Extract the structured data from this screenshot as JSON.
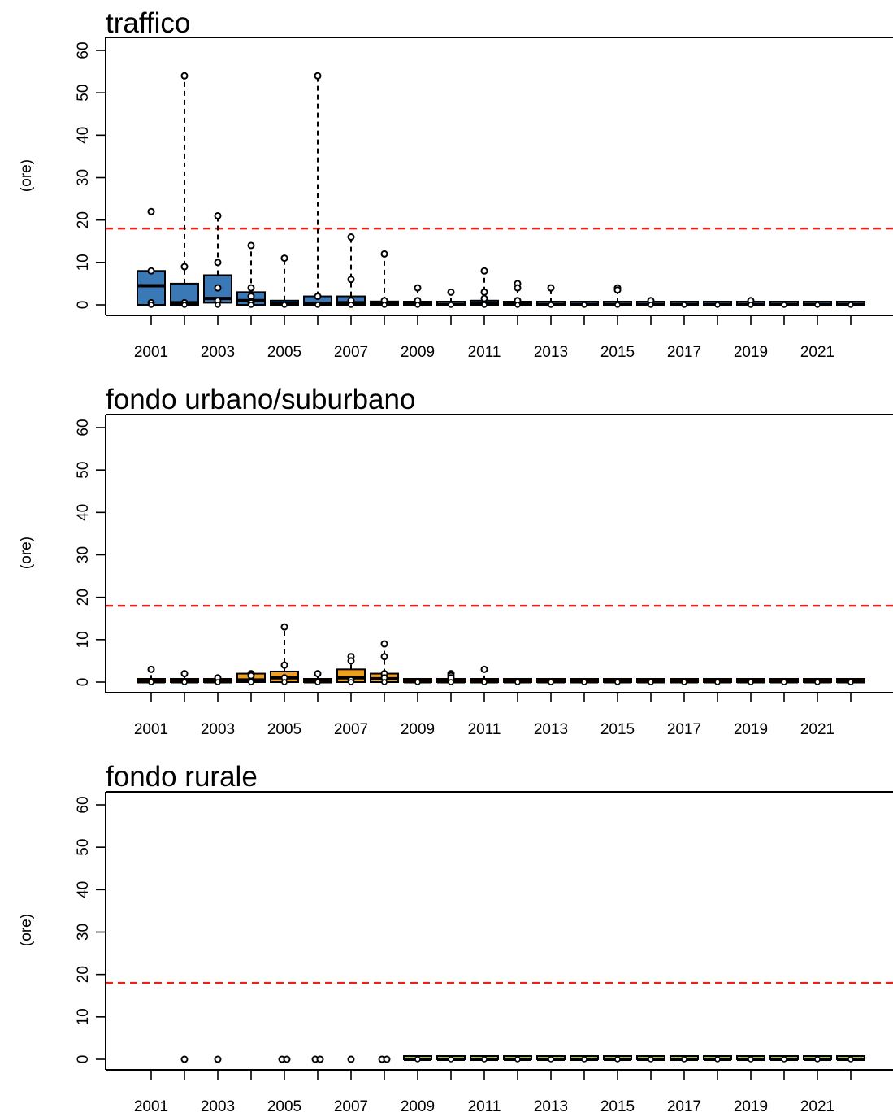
{
  "chart_data": [
    {
      "type": "box",
      "title": "traffico",
      "ylabel": "(ore)",
      "ylim": [
        0,
        60
      ],
      "yticks": [
        0,
        10,
        20,
        30,
        40,
        50,
        60
      ],
      "years": [
        2001,
        2002,
        2003,
        2004,
        2005,
        2006,
        2007,
        2008,
        2009,
        2010,
        2011,
        2012,
        2013,
        2014,
        2015,
        2016,
        2017,
        2018,
        2019,
        2020,
        2021,
        2022
      ],
      "xtick_labels": [
        "2001",
        "2003",
        "2005",
        "2007",
        "2009",
        "2011",
        "2013",
        "2015",
        "2017",
        "2019",
        "2021"
      ],
      "fill_color": "#3a78b6",
      "threshold": 18,
      "threshold_color": "#e8221b",
      "boxes": [
        {
          "year": 2001,
          "q1": 0,
          "median": 4.5,
          "q3": 8,
          "whisker_low": 0,
          "whisker_high": 8,
          "outliers": [
            22,
            8,
            0.5
          ]
        },
        {
          "year": 2002,
          "q1": 0,
          "median": 0.5,
          "q3": 5,
          "whisker_low": 0,
          "whisker_high": 54,
          "outliers": [
            54,
            9,
            0.5
          ]
        },
        {
          "year": 2003,
          "q1": 0.5,
          "median": 1.5,
          "q3": 7,
          "whisker_low": 0,
          "whisker_high": 21,
          "outliers": [
            21,
            10,
            4,
            1
          ]
        },
        {
          "year": 2004,
          "q1": 0,
          "median": 1,
          "q3": 3,
          "whisker_low": 0,
          "whisker_high": 14,
          "outliers": [
            14,
            4,
            2,
            0.5
          ]
        },
        {
          "year": 2005,
          "q1": 0,
          "median": 0.2,
          "q3": 1,
          "whisker_low": 0,
          "whisker_high": 11,
          "outliers": [
            11
          ]
        },
        {
          "year": 2006,
          "q1": 0,
          "median": 0.3,
          "q3": 2,
          "whisker_low": 0,
          "whisker_high": 54,
          "outliers": [
            54,
            2
          ]
        },
        {
          "year": 2007,
          "q1": 0,
          "median": 0.5,
          "q3": 2,
          "whisker_low": 0,
          "whisker_high": 16,
          "outliers": [
            16,
            6,
            1
          ]
        },
        {
          "year": 2008,
          "q1": 0,
          "median": 0.2,
          "q3": 0.8,
          "whisker_low": 0,
          "whisker_high": 12,
          "outliers": [
            12,
            1
          ]
        },
        {
          "year": 2009,
          "q1": 0,
          "median": 0.2,
          "q3": 0.6,
          "whisker_low": 0,
          "whisker_high": 4,
          "outliers": [
            4,
            1
          ]
        },
        {
          "year": 2010,
          "q1": 0,
          "median": 0.1,
          "q3": 0.4,
          "whisker_low": 0,
          "whisker_high": 3,
          "outliers": [
            3
          ]
        },
        {
          "year": 2011,
          "q1": 0,
          "median": 0.3,
          "q3": 1,
          "whisker_low": 0,
          "whisker_high": 8,
          "outliers": [
            8,
            3,
            1.5
          ]
        },
        {
          "year": 2012,
          "q1": 0,
          "median": 0.2,
          "q3": 0.6,
          "whisker_low": 0,
          "whisker_high": 5,
          "outliers": [
            5,
            4,
            1
          ]
        },
        {
          "year": 2013,
          "q1": 0,
          "median": 0.1,
          "q3": 0.4,
          "whisker_low": 0,
          "whisker_high": 4,
          "outliers": [
            4
          ]
        },
        {
          "year": 2014,
          "q1": 0,
          "median": 0.1,
          "q3": 0.3,
          "whisker_low": 0,
          "whisker_high": 0.3,
          "outliers": []
        },
        {
          "year": 2015,
          "q1": 0,
          "median": 0.1,
          "q3": 0.4,
          "whisker_low": 0,
          "whisker_high": 4,
          "outliers": [
            4,
            3.5
          ]
        },
        {
          "year": 2016,
          "q1": 0,
          "median": 0.1,
          "q3": 0.4,
          "whisker_low": 0,
          "whisker_high": 1,
          "outliers": [
            1
          ]
        },
        {
          "year": 2017,
          "q1": 0,
          "median": 0.1,
          "q3": 0.3,
          "whisker_low": 0,
          "whisker_high": 0.3,
          "outliers": []
        },
        {
          "year": 2018,
          "q1": 0,
          "median": 0.1,
          "q3": 0.3,
          "whisker_low": 0,
          "whisker_high": 0.3,
          "outliers": []
        },
        {
          "year": 2019,
          "q1": 0,
          "median": 0.1,
          "q3": 0.3,
          "whisker_low": 0,
          "whisker_high": 1,
          "outliers": [
            1
          ]
        },
        {
          "year": 2020,
          "q1": 0,
          "median": 0.1,
          "q3": 0.3,
          "whisker_low": 0,
          "whisker_high": 0.3,
          "outliers": []
        },
        {
          "year": 2021,
          "q1": 0,
          "median": 0.1,
          "q3": 0.3,
          "whisker_low": 0,
          "whisker_high": 0.3,
          "outliers": []
        },
        {
          "year": 2022,
          "q1": 0,
          "median": 0.1,
          "q3": 0.3,
          "whisker_low": 0,
          "whisker_high": 0.3,
          "outliers": []
        }
      ]
    },
    {
      "type": "box",
      "title": "fondo urbano/suburbano",
      "ylabel": "(ore)",
      "ylim": [
        0,
        60
      ],
      "yticks": [
        0,
        10,
        20,
        30,
        40,
        50,
        60
      ],
      "years": [
        2001,
        2002,
        2003,
        2004,
        2005,
        2006,
        2007,
        2008,
        2009,
        2010,
        2011,
        2012,
        2013,
        2014,
        2015,
        2016,
        2017,
        2018,
        2019,
        2020,
        2021,
        2022
      ],
      "xtick_labels": [
        "2001",
        "2003",
        "2005",
        "2007",
        "2009",
        "2011",
        "2013",
        "2015",
        "2017",
        "2019",
        "2021"
      ],
      "fill_color": "#f0a020",
      "threshold": 18,
      "threshold_color": "#e8221b",
      "boxes": [
        {
          "year": 2001,
          "q1": 0,
          "median": 0.1,
          "q3": 0.5,
          "whisker_low": 0,
          "whisker_high": 3,
          "outliers": [
            3
          ]
        },
        {
          "year": 2002,
          "q1": 0,
          "median": 0.1,
          "q3": 0.4,
          "whisker_low": 0,
          "whisker_high": 2,
          "outliers": [
            2
          ]
        },
        {
          "year": 2003,
          "q1": 0,
          "median": 0.1,
          "q3": 0.4,
          "whisker_low": 0,
          "whisker_high": 1,
          "outliers": [
            1
          ]
        },
        {
          "year": 2004,
          "q1": 0,
          "median": 0.5,
          "q3": 2,
          "whisker_low": 0,
          "whisker_high": 2,
          "outliers": [
            2,
            1.5
          ]
        },
        {
          "year": 2005,
          "q1": 0,
          "median": 1,
          "q3": 2.5,
          "whisker_low": 0,
          "whisker_high": 13,
          "outliers": [
            13,
            4,
            1
          ]
        },
        {
          "year": 2006,
          "q1": 0,
          "median": 0.1,
          "q3": 0.5,
          "whisker_low": 0,
          "whisker_high": 2,
          "outliers": [
            2
          ]
        },
        {
          "year": 2007,
          "q1": 0,
          "median": 1,
          "q3": 3,
          "whisker_low": 0,
          "whisker_high": 6,
          "outliers": [
            6,
            5,
            0.5
          ]
        },
        {
          "year": 2008,
          "q1": 0,
          "median": 0.8,
          "q3": 2,
          "whisker_low": 0,
          "whisker_high": 9,
          "outliers": [
            9,
            6,
            2,
            1
          ]
        },
        {
          "year": 2009,
          "q1": 0,
          "median": 0.1,
          "q3": 0.3,
          "whisker_low": 0,
          "whisker_high": 0.3,
          "outliers": []
        },
        {
          "year": 2010,
          "q1": 0,
          "median": 0.1,
          "q3": 0.4,
          "whisker_low": 0,
          "whisker_high": 2,
          "outliers": [
            2,
            1.5,
            1
          ]
        },
        {
          "year": 2011,
          "q1": 0,
          "median": 0.1,
          "q3": 0.4,
          "whisker_low": 0,
          "whisker_high": 3,
          "outliers": [
            3
          ]
        },
        {
          "year": 2012,
          "q1": 0,
          "median": 0.1,
          "q3": 0.3,
          "whisker_low": 0,
          "whisker_high": 0.3,
          "outliers": []
        },
        {
          "year": 2013,
          "q1": 0,
          "median": 0.1,
          "q3": 0.3,
          "whisker_low": 0,
          "whisker_high": 0.3,
          "outliers": []
        },
        {
          "year": 2014,
          "q1": 0,
          "median": 0.1,
          "q3": 0.3,
          "whisker_low": 0,
          "whisker_high": 0.3,
          "outliers": []
        },
        {
          "year": 2015,
          "q1": 0,
          "median": 0.1,
          "q3": 0.3,
          "whisker_low": 0,
          "whisker_high": 0.3,
          "outliers": []
        },
        {
          "year": 2016,
          "q1": 0,
          "median": 0.1,
          "q3": 0.3,
          "whisker_low": 0,
          "whisker_high": 0.3,
          "outliers": []
        },
        {
          "year": 2017,
          "q1": 0,
          "median": 0.1,
          "q3": 0.3,
          "whisker_low": 0,
          "whisker_high": 0.3,
          "outliers": []
        },
        {
          "year": 2018,
          "q1": 0,
          "median": 0.1,
          "q3": 0.3,
          "whisker_low": 0,
          "whisker_high": 0.3,
          "outliers": []
        },
        {
          "year": 2019,
          "q1": 0,
          "median": 0.1,
          "q3": 0.3,
          "whisker_low": 0,
          "whisker_high": 0.3,
          "outliers": []
        },
        {
          "year": 2020,
          "q1": 0,
          "median": 0.1,
          "q3": 0.3,
          "whisker_low": 0,
          "whisker_high": 0.3,
          "outliers": []
        },
        {
          "year": 2021,
          "q1": 0,
          "median": 0.1,
          "q3": 0.3,
          "whisker_low": 0,
          "whisker_high": 0.3,
          "outliers": []
        },
        {
          "year": 2022,
          "q1": 0,
          "median": 0.1,
          "q3": 0.3,
          "whisker_low": 0,
          "whisker_high": 0.3,
          "outliers": []
        }
      ]
    },
    {
      "type": "box",
      "title": "fondo rurale",
      "ylabel": "(ore)",
      "ylim": [
        0,
        60
      ],
      "yticks": [
        0,
        10,
        20,
        30,
        40,
        50,
        60
      ],
      "years": [
        2001,
        2002,
        2003,
        2004,
        2005,
        2006,
        2007,
        2008,
        2009,
        2010,
        2011,
        2012,
        2013,
        2014,
        2015,
        2016,
        2017,
        2018,
        2019,
        2020,
        2021,
        2022
      ],
      "xtick_labels": [
        "2001",
        "2003",
        "2005",
        "2007",
        "2009",
        "2011",
        "2013",
        "2015",
        "2017",
        "2019",
        "2021"
      ],
      "fill_color": "#9acd32",
      "threshold": 18,
      "threshold_color": "#e8221b",
      "points": [
        {
          "year": 2002,
          "values": [
            0
          ]
        },
        {
          "year": 2003,
          "values": [
            0
          ]
        },
        {
          "year": 2005,
          "values": [
            0,
            0
          ]
        },
        {
          "year": 2006,
          "values": [
            0,
            0
          ]
        },
        {
          "year": 2007,
          "values": [
            0
          ]
        },
        {
          "year": 2008,
          "values": [
            0,
            0
          ]
        }
      ],
      "boxes": [
        {
          "year": 2009,
          "q1": 0,
          "median": 0,
          "q3": 0.3,
          "whisker_low": 0,
          "whisker_high": 0.3,
          "outliers": []
        },
        {
          "year": 2010,
          "q1": 0,
          "median": 0,
          "q3": 0.3,
          "whisker_low": 0,
          "whisker_high": 0.3,
          "outliers": []
        },
        {
          "year": 2011,
          "q1": 0,
          "median": 0,
          "q3": 0.3,
          "whisker_low": 0,
          "whisker_high": 0.3,
          "outliers": []
        },
        {
          "year": 2012,
          "q1": 0,
          "median": 0,
          "q3": 0.3,
          "whisker_low": 0,
          "whisker_high": 0.3,
          "outliers": []
        },
        {
          "year": 2013,
          "q1": 0,
          "median": 0,
          "q3": 0.3,
          "whisker_low": 0,
          "whisker_high": 0.3,
          "outliers": []
        },
        {
          "year": 2014,
          "q1": 0,
          "median": 0,
          "q3": 0.3,
          "whisker_low": 0,
          "whisker_high": 0.3,
          "outliers": []
        },
        {
          "year": 2015,
          "q1": 0,
          "median": 0,
          "q3": 0.3,
          "whisker_low": 0,
          "whisker_high": 0.3,
          "outliers": []
        },
        {
          "year": 2016,
          "q1": 0,
          "median": 0,
          "q3": 0.3,
          "whisker_low": 0,
          "whisker_high": 0.3,
          "outliers": []
        },
        {
          "year": 2017,
          "q1": 0,
          "median": 0,
          "q3": 0.3,
          "whisker_low": 0,
          "whisker_high": 0.3,
          "outliers": []
        },
        {
          "year": 2018,
          "q1": 0,
          "median": 0,
          "q3": 0.3,
          "whisker_low": 0,
          "whisker_high": 0.3,
          "outliers": []
        },
        {
          "year": 2019,
          "q1": 0,
          "median": 0,
          "q3": 0.3,
          "whisker_low": 0,
          "whisker_high": 0.3,
          "outliers": []
        },
        {
          "year": 2020,
          "q1": 0,
          "median": 0,
          "q3": 0.3,
          "whisker_low": 0,
          "whisker_high": 0.3,
          "outliers": []
        },
        {
          "year": 2021,
          "q1": 0,
          "median": 0,
          "q3": 0.3,
          "whisker_low": 0,
          "whisker_high": 0.3,
          "outliers": []
        },
        {
          "year": 2022,
          "q1": 0,
          "median": 0,
          "q3": 0.3,
          "whisker_low": 0,
          "whisker_high": 0.3,
          "outliers": []
        }
      ]
    }
  ]
}
